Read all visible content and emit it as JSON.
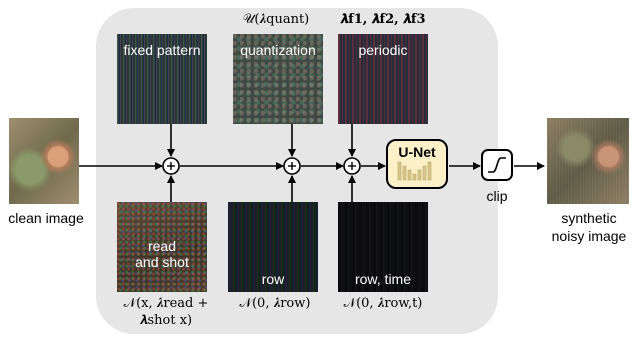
{
  "inputs": {
    "clean_label": "clean image",
    "noisy_label_line1": "synthetic",
    "noisy_label_line2": "noisy image"
  },
  "noise_blocks": {
    "fixed_pattern": "fixed pattern",
    "quantization": "quantization",
    "periodic": "periodic",
    "read_shot_line1": "read",
    "read_shot_line2": "and shot",
    "row": "row",
    "row_time": "row, time"
  },
  "equations": {
    "quantization": "𝒰(𝝀quant)",
    "periodic": "𝝀f1, 𝝀f2, 𝝀f3",
    "read_shot_line1": "𝒩(x, 𝝀read +",
    "read_shot_line2": "𝝀shot x)",
    "row": "𝒩(0, 𝝀row)",
    "row_time": "𝒩(0, 𝝀row,t)"
  },
  "network": {
    "unet_label": "U-Net",
    "clip_label": "clip"
  },
  "colors": {
    "panel": "#e6e6e6",
    "unet_fill": "#fbf0c7",
    "unet_inner": "#d8c68a"
  }
}
